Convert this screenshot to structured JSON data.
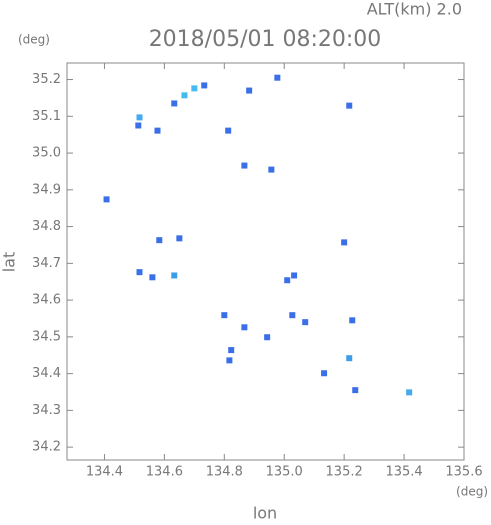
{
  "chart_data": {
    "type": "scatter",
    "title": "2018/05/01 08:20:00",
    "altitude_label": "ALT(km) 2.0",
    "y_unit": "(deg)",
    "x_unit": "(deg)",
    "xlabel": "lon",
    "ylabel": "lat",
    "x": [
      134.517,
      134.513,
      134.667,
      134.633,
      134.7,
      134.733,
      134.577,
      134.813,
      134.883,
      134.977,
      135.217,
      134.867,
      134.957,
      134.407,
      134.583,
      134.65,
      134.517,
      134.56,
      134.633,
      135.2,
      135.033,
      135.01,
      134.8,
      134.867,
      134.943,
      135.027,
      135.07,
      134.823,
      134.817,
      135.217,
      135.227,
      135.237,
      135.417,
      135.133
    ],
    "y": [
      35.097,
      35.075,
      35.157,
      35.135,
      35.176,
      35.184,
      35.061,
      35.061,
      35.17,
      35.205,
      35.129,
      34.966,
      34.955,
      34.874,
      34.763,
      34.768,
      34.676,
      34.662,
      34.667,
      34.757,
      34.667,
      34.654,
      34.559,
      34.526,
      34.499,
      34.559,
      34.54,
      34.464,
      34.436,
      34.442,
      34.545,
      34.355,
      34.349,
      34.401
    ],
    "point_colors": [
      "#44aaf0",
      "#3a6fe8",
      "#44bbee",
      "#3a6fe8",
      "#44bbee",
      "#3a6fe8",
      "#3a6fe8",
      "#3a6fe8",
      "#3a6fe8",
      "#3a6fe8",
      "#3a6fe8",
      "#3a6fe8",
      "#3a6fe8",
      "#3a6fe8",
      "#3a6fe8",
      "#3a6fe8",
      "#3a6fe8",
      "#3a6fe8",
      "#3a9fe8",
      "#3a6fe8",
      "#3a6fe8",
      "#3a6fe8",
      "#3a6fe8",
      "#3a6fe8",
      "#3a6fe8",
      "#3a6fe8",
      "#3a6fe8",
      "#3a6fe8",
      "#3a6fe8",
      "#3a9fe8",
      "#3a6fe8",
      "#3a6fe8",
      "#44aaf0",
      "#3a6fe8"
    ],
    "xlim": [
      134.275,
      135.6
    ],
    "ylim": [
      34.165,
      35.245
    ],
    "xticks": [
      134.4,
      134.6,
      134.8,
      {
        "value": 135.0,
        "label": "135.0"
      },
      135.2,
      135.4,
      135.6
    ],
    "yticks": [
      34.2,
      34.3,
      34.4,
      34.5,
      34.6,
      34.7,
      34.8,
      34.9,
      {
        "value": 35.0,
        "label": "35.0"
      },
      35.1,
      35.2
    ]
  }
}
